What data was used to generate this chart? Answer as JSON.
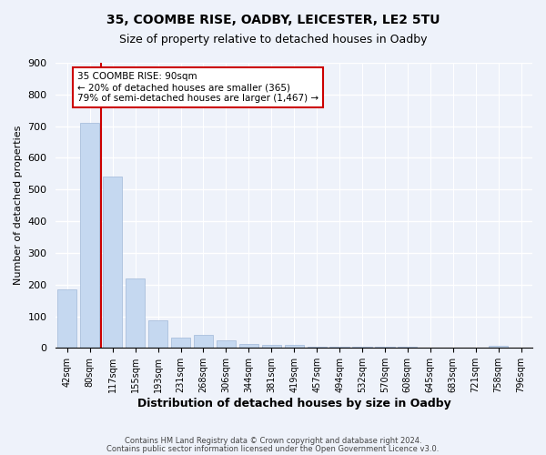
{
  "title1": "35, COOMBE RISE, OADBY, LEICESTER, LE2 5TU",
  "title2": "Size of property relative to detached houses in Oadby",
  "xlabel": "Distribution of detached houses by size in Oadby",
  "ylabel": "Number of detached properties",
  "categories": [
    "42sqm",
    "80sqm",
    "117sqm",
    "155sqm",
    "193sqm",
    "231sqm",
    "268sqm",
    "306sqm",
    "344sqm",
    "381sqm",
    "419sqm",
    "457sqm",
    "494sqm",
    "532sqm",
    "570sqm",
    "608sqm",
    "645sqm",
    "683sqm",
    "721sqm",
    "758sqm",
    "796sqm"
  ],
  "values": [
    185,
    710,
    540,
    220,
    88,
    32,
    40,
    25,
    12,
    10,
    10,
    5,
    5,
    4,
    4,
    3,
    0,
    0,
    0,
    8,
    0
  ],
  "bar_color": "#c5d8f0",
  "bar_edge_color": "#a0b8d8",
  "vline_color": "#cc0000",
  "vline_x": 1.5,
  "annotation_line1": "35 COOMBE RISE: 90sqm",
  "annotation_line2": "← 20% of detached houses are smaller (365)",
  "annotation_line3": "79% of semi-detached houses are larger (1,467) →",
  "ylim": [
    0,
    900
  ],
  "yticks": [
    0,
    100,
    200,
    300,
    400,
    500,
    600,
    700,
    800,
    900
  ],
  "footer1": "Contains HM Land Registry data © Crown copyright and database right 2024.",
  "footer2": "Contains public sector information licensed under the Open Government Licence v3.0.",
  "bg_color": "#eef2fa",
  "plot_bg_color": "#eef2fa"
}
